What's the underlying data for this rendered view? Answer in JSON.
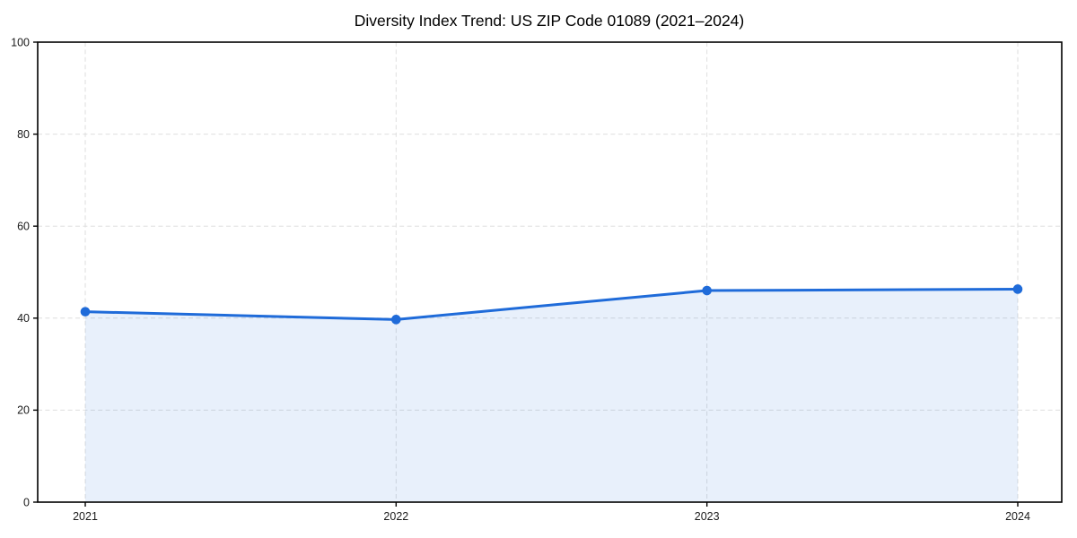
{
  "title": "Diversity Index Trend: US ZIP Code 01089 (2021–2024)",
  "chart_data": {
    "type": "line",
    "title": "Diversity Index Trend: US ZIP Code 01089 (2021–2024)",
    "categories": [
      "2021",
      "2022",
      "2023",
      "2024"
    ],
    "x": [
      2021,
      2022,
      2023,
      2024
    ],
    "series": [
      {
        "name": "Diversity Index",
        "values": [
          41.4,
          39.7,
          46.0,
          46.3
        ]
      }
    ],
    "xlabel": "",
    "ylabel": "",
    "ylim": [
      0,
      100
    ],
    "yticks": [
      0,
      20,
      40,
      60,
      80,
      100
    ],
    "grid": true,
    "grid_style": "dashed",
    "legend_position": "none",
    "marker": "circle",
    "area_fill_to_zero": true,
    "colors": {
      "line": "#1f6bd9",
      "marker": "#1f6bd9",
      "area_fill": "#1f6bd9",
      "area_fill_opacity": 0.1,
      "grid": "#dedede",
      "spine": "#000000",
      "tick_text": "#1a1a1a",
      "title_text": "#000000",
      "background": "#ffffff"
    }
  }
}
